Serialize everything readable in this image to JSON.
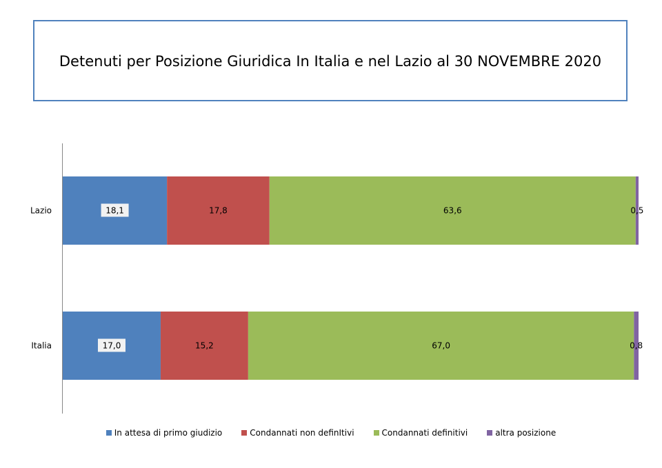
{
  "chart_data": {
    "type": "bar",
    "orientation": "horizontal-stacked-100",
    "title": "Detenuti per Posizione Giuridica  In Italia e nel Lazio al 30 NOVEMBRE 2020",
    "categories": [
      "Lazio",
      "Italia"
    ],
    "series": [
      {
        "name": "In attesa di primo giudizio",
        "color": "#4f81bd",
        "values": [
          18.1,
          17.0
        ],
        "labels": [
          "18,1",
          "17,0"
        ]
      },
      {
        "name": "Condannati non definItivi",
        "color": "#c0504d",
        "values": [
          17.8,
          15.2
        ],
        "labels": [
          "17,8",
          "15,2"
        ]
      },
      {
        "name": "Condannati definitivi",
        "color": "#9bbb59",
        "values": [
          63.6,
          67.0
        ],
        "labels": [
          "63,6",
          "67,0"
        ]
      },
      {
        "name": "altra posizione",
        "color": "#8064a2",
        "values": [
          0.5,
          0.8
        ],
        "labels": [
          "0,5",
          "0,8"
        ]
      }
    ],
    "legend_position": "bottom"
  }
}
